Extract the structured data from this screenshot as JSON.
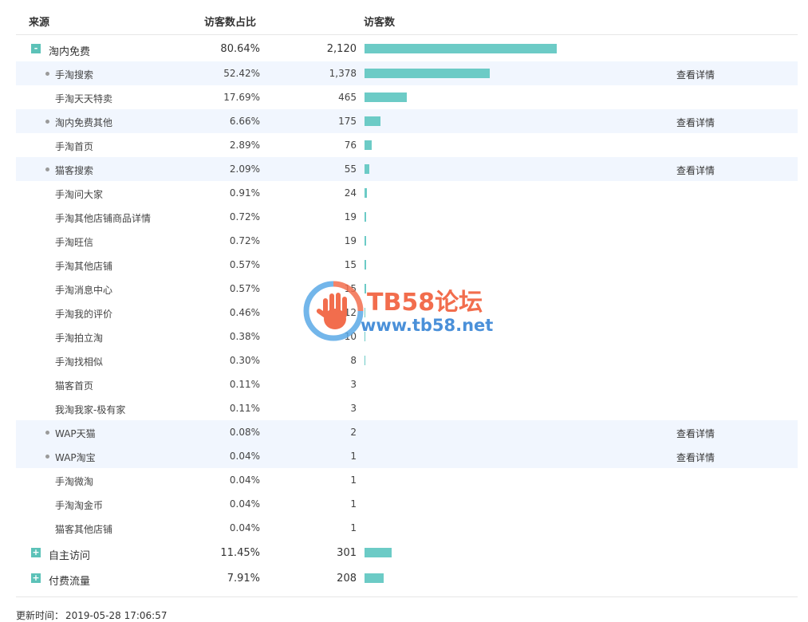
{
  "header": {
    "source": "来源",
    "share": "访客数占比",
    "visitors": "访客数"
  },
  "rows": [
    {
      "name": "淘内免费",
      "pct": "80.64%",
      "count": "2,120",
      "value": 2120,
      "level": "top",
      "toggle": "-",
      "detail": ""
    },
    {
      "name": "手淘搜索",
      "pct": "52.42%",
      "count": "1,378",
      "value": 1378,
      "level": "child",
      "dot": true,
      "detail": "查看详情"
    },
    {
      "name": "手淘天天特卖",
      "pct": "17.69%",
      "count": "465",
      "value": 465,
      "level": "child",
      "detail": ""
    },
    {
      "name": "淘内免费其他",
      "pct": "6.66%",
      "count": "175",
      "value": 175,
      "level": "child",
      "dot": true,
      "detail": "查看详情"
    },
    {
      "name": "手淘首页",
      "pct": "2.89%",
      "count": "76",
      "value": 76,
      "level": "child",
      "detail": ""
    },
    {
      "name": "猫客搜索",
      "pct": "2.09%",
      "count": "55",
      "value": 55,
      "level": "child",
      "dot": true,
      "detail": "查看详情"
    },
    {
      "name": "手淘问大家",
      "pct": "0.91%",
      "count": "24",
      "value": 24,
      "level": "child",
      "detail": ""
    },
    {
      "name": "手淘其他店铺商品详情",
      "pct": "0.72%",
      "count": "19",
      "value": 19,
      "level": "child",
      "detail": ""
    },
    {
      "name": "手淘旺信",
      "pct": "0.72%",
      "count": "19",
      "value": 19,
      "level": "child",
      "detail": ""
    },
    {
      "name": "手淘其他店铺",
      "pct": "0.57%",
      "count": "15",
      "value": 15,
      "level": "child",
      "detail": ""
    },
    {
      "name": "手淘消息中心",
      "pct": "0.57%",
      "count": "15",
      "value": 15,
      "level": "child",
      "detail": ""
    },
    {
      "name": "手淘我的评价",
      "pct": "0.46%",
      "count": "12",
      "value": 12,
      "level": "child",
      "detail": ""
    },
    {
      "name": "手淘拍立淘",
      "pct": "0.38%",
      "count": "10",
      "value": 10,
      "level": "child",
      "detail": ""
    },
    {
      "name": "手淘找相似",
      "pct": "0.30%",
      "count": "8",
      "value": 8,
      "level": "child",
      "detail": ""
    },
    {
      "name": "猫客首页",
      "pct": "0.11%",
      "count": "3",
      "value": 3,
      "level": "child",
      "detail": ""
    },
    {
      "name": "我淘我家-极有家",
      "pct": "0.11%",
      "count": "3",
      "value": 3,
      "level": "child",
      "detail": ""
    },
    {
      "name": "WAP天猫",
      "pct": "0.08%",
      "count": "2",
      "value": 2,
      "level": "child",
      "dot": true,
      "detail": "查看详情"
    },
    {
      "name": "WAP淘宝",
      "pct": "0.04%",
      "count": "1",
      "value": 1,
      "level": "child",
      "dot": true,
      "detail": "查看详情"
    },
    {
      "name": "手淘微淘",
      "pct": "0.04%",
      "count": "1",
      "value": 1,
      "level": "child",
      "detail": ""
    },
    {
      "name": "手淘淘金币",
      "pct": "0.04%",
      "count": "1",
      "value": 1,
      "level": "child",
      "detail": ""
    },
    {
      "name": "猫客其他店铺",
      "pct": "0.04%",
      "count": "1",
      "value": 1,
      "level": "child",
      "detail": ""
    },
    {
      "name": "自主访问",
      "pct": "11.45%",
      "count": "301",
      "value": 301,
      "level": "top",
      "toggle": "+",
      "detail": ""
    },
    {
      "name": "付费流量",
      "pct": "7.91%",
      "count": "208",
      "value": 208,
      "level": "top",
      "toggle": "+",
      "detail": ""
    }
  ],
  "bar_max": 2120,
  "bar_color": "#6ccbc6",
  "toggle_color": "#5cc2b8",
  "footer": {
    "update_label": "更新时间：",
    "update_time": "2019-05-28 17:06:57"
  },
  "watermark": {
    "title": "TB58论坛",
    "url": "www.tb58.net"
  }
}
